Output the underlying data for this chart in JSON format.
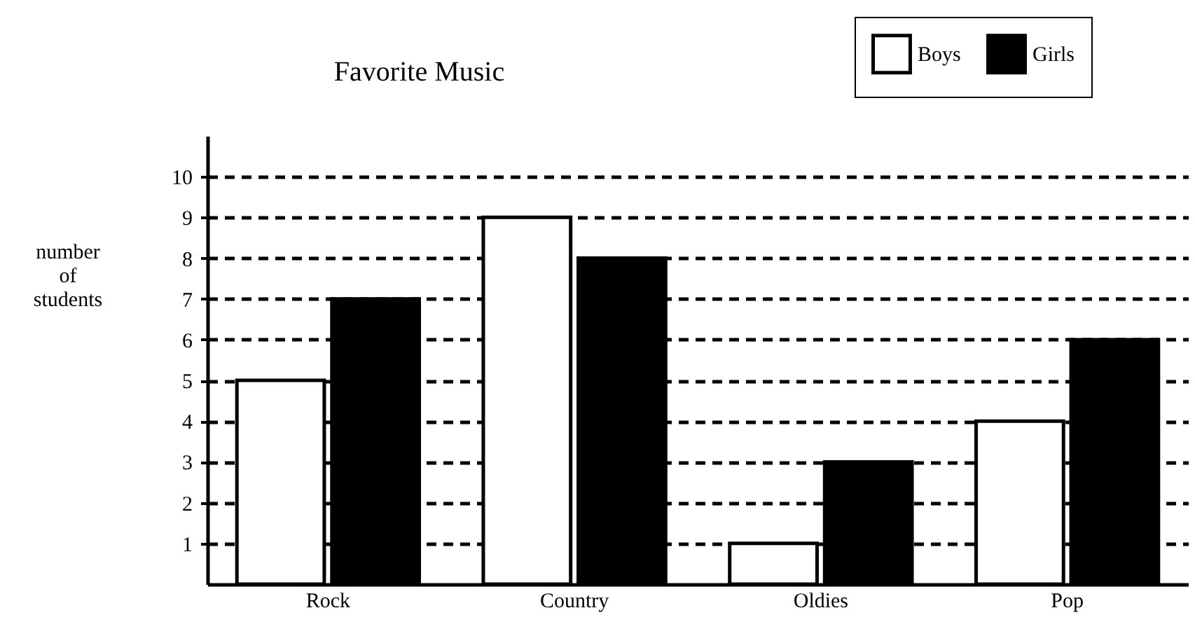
{
  "chart_data": {
    "type": "bar",
    "title": "Favorite Music",
    "ylabel": "number of students",
    "categories": [
      "Rock",
      "Country",
      "Oldies",
      "Pop"
    ],
    "series": [
      {
        "name": "Boys",
        "color": "#ffffff",
        "values": [
          5,
          9,
          1,
          4
        ]
      },
      {
        "name": "Girls",
        "color": "#000000",
        "values": [
          7,
          8,
          3,
          6
        ]
      }
    ],
    "ylim": [
      0,
      11
    ],
    "yticks": [
      1,
      2,
      3,
      4,
      5,
      6,
      7,
      8,
      9,
      10
    ],
    "grid": "y",
    "legend": "top right"
  }
}
